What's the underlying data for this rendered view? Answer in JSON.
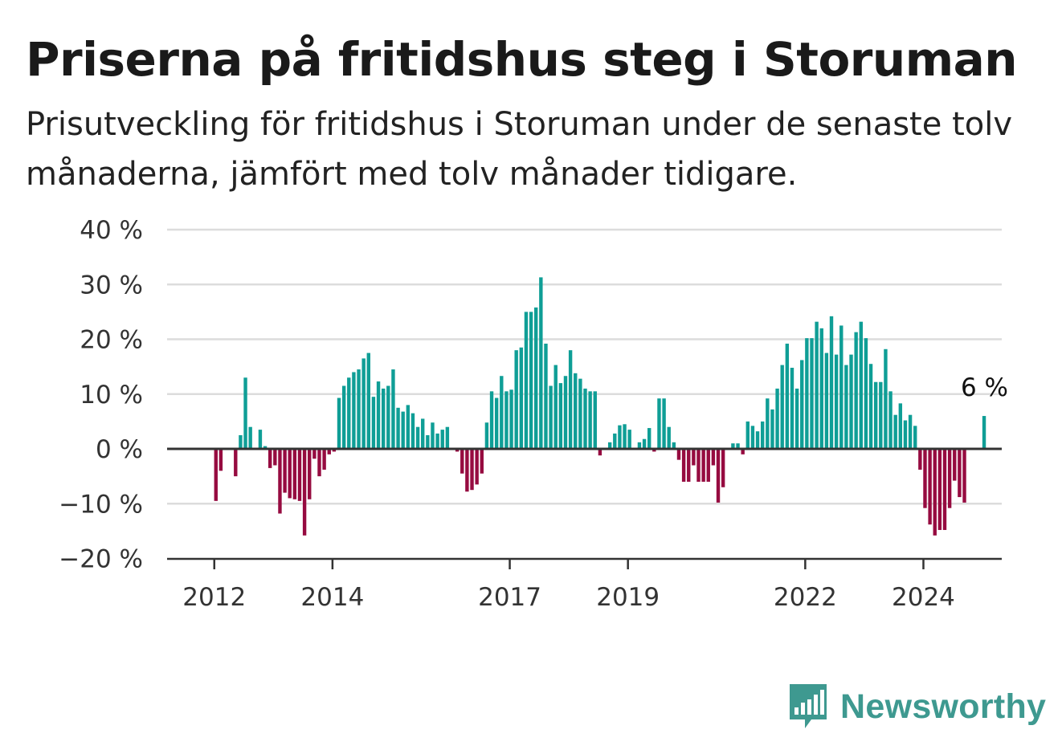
{
  "title": "Priserna på fritidshus steg i Storuman",
  "subtitle": "Prisutveckling för fritidshus i Storuman under de senaste tolv månaderna, jämfört med tolv månader tidigare.",
  "brand": {
    "name": "Newsworthy",
    "icon": "bar-chart-speech-bubble-icon",
    "color": "#3e9990"
  },
  "colors": {
    "positive": "#0f9e96",
    "negative": "#960b40",
    "grid": "#dcdcdc",
    "zero_line": "#333333"
  },
  "chart_data": {
    "type": "bar",
    "x_start": "2011-11",
    "x_step": "month",
    "x_tick_labels": [
      "2012",
      "2014",
      "2017",
      "2019",
      "2022",
      "2024"
    ],
    "y_tick_labels": [
      "40 %",
      "30 %",
      "20 %",
      "10 %",
      "0 %",
      "−10 %",
      "−20 %"
    ],
    "ylim": [
      -20,
      40
    ],
    "yticks": [
      40,
      30,
      20,
      10,
      0,
      -10,
      -20
    ],
    "grid": true,
    "unit": "%",
    "annotation": {
      "label": "6 %",
      "value": 6
    },
    "values": [
      null,
      null,
      -9.5,
      -4,
      null,
      null,
      -5,
      2.5,
      13,
      4,
      null,
      3.5,
      0.5,
      -3.5,
      -3,
      -11.8,
      -8,
      -9,
      -9.2,
      -9.5,
      -15.8,
      -9.2,
      -1.8,
      -5,
      -3.8,
      -1,
      -0.5,
      9.3,
      11.5,
      13,
      14,
      14.5,
      16.5,
      17.5,
      9.5,
      12.3,
      11,
      11.5,
      14.5,
      7.5,
      6.8,
      8,
      6.5,
      4,
      5.5,
      2.5,
      4.8,
      2.8,
      3.5,
      4,
      null,
      -0.5,
      -4.5,
      -7.8,
      -7.5,
      -6.5,
      -4.5,
      4.8,
      10.5,
      9.3,
      13.3,
      10.5,
      10.8,
      18,
      18.5,
      25,
      25,
      25.8,
      31.3,
      19.2,
      11.5,
      15.3,
      12,
      13.3,
      18,
      13.8,
      12.8,
      11,
      10.5,
      10.5,
      -1.2,
      null,
      1.2,
      2.8,
      4.3,
      4.5,
      3.5,
      null,
      1.2,
      1.8,
      3.8,
      -0.5,
      9.2,
      9.2,
      4,
      1.2,
      -2,
      -6,
      -6,
      -3,
      -6,
      -6,
      -6,
      -3,
      -9.8,
      -7,
      null,
      1,
      1,
      -1,
      5,
      4.2,
      3.2,
      5,
      9.2,
      7.2,
      11,
      15.3,
      19.2,
      14.8,
      11,
      16.2,
      20.2,
      20.2,
      23.2,
      22,
      17.5,
      24.2,
      17.2,
      22.5,
      15.3,
      17.2,
      21.3,
      23.2,
      20.2,
      15.5,
      12.2,
      12.2,
      18.2,
      10.5,
      6.2,
      8.3,
      5.2,
      6.2,
      4.2,
      -3.8,
      -10.8,
      -13.8,
      -15.8,
      -14.8,
      -14.8,
      -10.8,
      -5.8,
      -8.8,
      -9.8,
      null,
      null,
      null,
      6
    ]
  }
}
